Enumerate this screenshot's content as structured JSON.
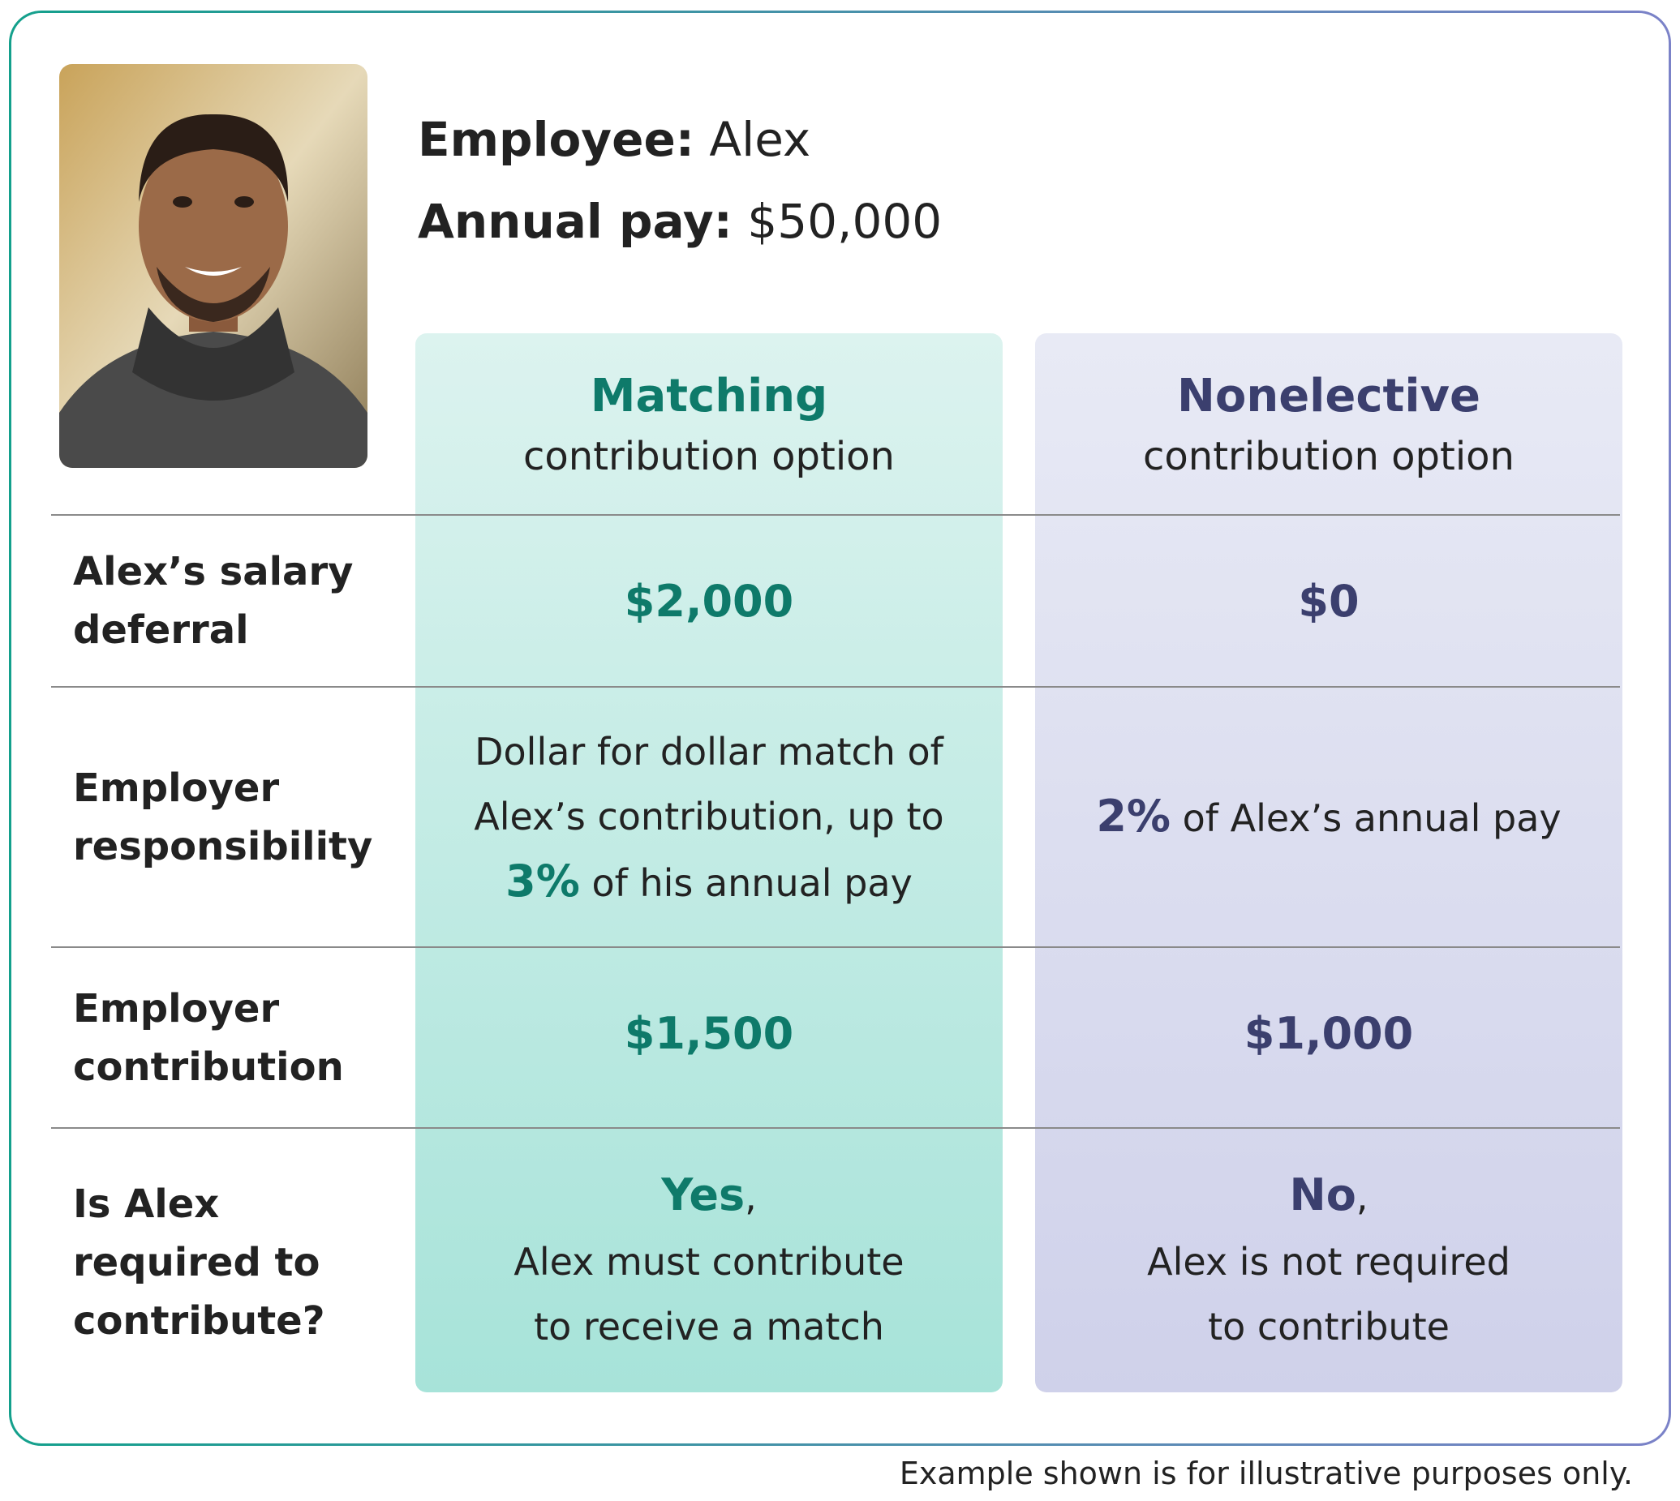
{
  "header": {
    "employee_label": "Employee:",
    "employee_name": "Alex",
    "pay_label": "Annual pay:",
    "pay_value": "$50,000"
  },
  "table": {
    "columns": [
      {
        "title": "Matching",
        "subtitle": "contribution option"
      },
      {
        "title": "Nonelective",
        "subtitle": "contribution option"
      }
    ],
    "rows": [
      {
        "label": "Alex’s salary deferral",
        "matching": "$2,000",
        "nonelective": "$0"
      },
      {
        "label": "Employer responsibility",
        "matching": {
          "before": "Dollar for dollar match of Alex’s contribution, up to ",
          "strong": "3%",
          "after": " of his annual pay"
        },
        "nonelective": {
          "strong": "2%",
          "after": " of Alex’s annual pay"
        }
      },
      {
        "label": "Employer contribution",
        "matching": "$1,500",
        "nonelective": "$1,000"
      },
      {
        "label": "Is Alex required to contribute?",
        "matching": {
          "answer": "Yes",
          "punct": ",",
          "detail": "Alex must contribute to receive a match"
        },
        "nonelective": {
          "answer": "No",
          "punct": ",",
          "detail": "Alex is not required to contribute"
        }
      }
    ]
  },
  "footnote": "Example shown is for illustrative purposes only."
}
